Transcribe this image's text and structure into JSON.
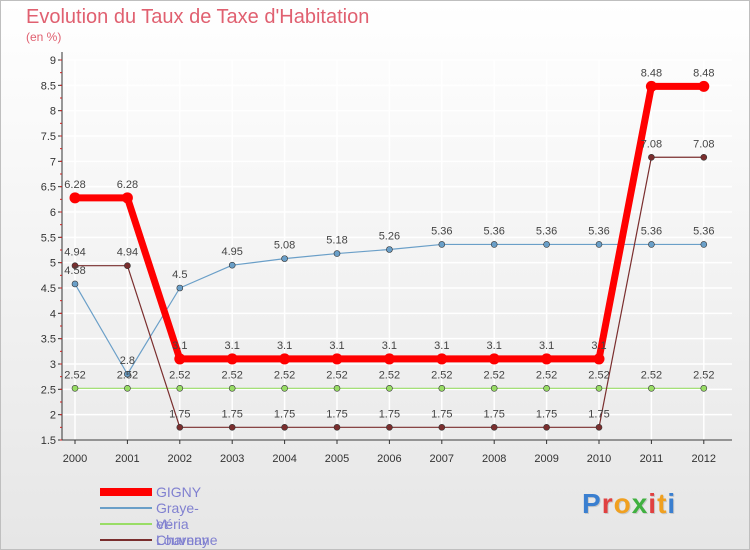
{
  "colors": {
    "title": "#e06070",
    "axis": "#333333",
    "tick_mark": "#cc2222",
    "grid": "#ffffff"
  },
  "chart_data": {
    "type": "line",
    "title": "Evolution du Taux de Taxe d'Habitation",
    "unit_label": "(en %)",
    "xlabel": "",
    "ylabel": "",
    "categories": [
      "2000",
      "2001",
      "2002",
      "2003",
      "2004",
      "2005",
      "2006",
      "2007",
      "2008",
      "2009",
      "2010",
      "2011",
      "2012"
    ],
    "ylim": [
      1.5,
      9
    ],
    "yticks": [
      1.5,
      2,
      2.5,
      3,
      3.5,
      4,
      4.5,
      5,
      5.5,
      6,
      6.5,
      7,
      7.5,
      8,
      8.5,
      9
    ],
    "grid": true,
    "legend_position": "bottom-left",
    "series": [
      {
        "name": "GIGNY",
        "color": "#ff0000",
        "emphasis": "thick",
        "values": [
          6.28,
          6.28,
          3.1,
          3.1,
          3.1,
          3.1,
          3.1,
          3.1,
          3.1,
          3.1,
          3.1,
          8.48,
          8.48
        ],
        "labels": [
          "6.28",
          "6.28",
          "3.1",
          "3.1",
          "3.1",
          "3.1",
          "3.1",
          "3.1",
          "3.1",
          "3.1",
          "3.1",
          "8.48",
          "8.48"
        ]
      },
      {
        "name": "Graye-et-Charnay",
        "color": "#6a9fc8",
        "values": [
          4.58,
          2.8,
          4.5,
          4.95,
          5.08,
          5.18,
          5.26,
          5.36,
          5.36,
          5.36,
          5.36,
          5.36,
          5.36
        ],
        "labels": [
          "4.58",
          "2.8",
          "4.5",
          "4.95",
          "5.08",
          "5.18",
          "5.26",
          "5.36",
          "5.36",
          "5.36",
          "5.36",
          "5.36",
          "5.36"
        ]
      },
      {
        "name": "Véria",
        "color": "#99dd66",
        "values": [
          2.52,
          2.52,
          2.52,
          2.52,
          2.52,
          2.52,
          2.52,
          2.52,
          2.52,
          2.52,
          2.52,
          2.52,
          2.52
        ],
        "labels": [
          "2.52",
          "2.52",
          "2.52",
          "2.52",
          "2.52",
          "2.52",
          "2.52",
          "2.52",
          "2.52",
          "2.52",
          "2.52",
          "2.52",
          "2.52"
        ]
      },
      {
        "name": "Louvenne",
        "color": "#7a2e2e",
        "values": [
          4.94,
          4.94,
          1.75,
          1.75,
          1.75,
          1.75,
          1.75,
          1.75,
          1.75,
          1.75,
          1.75,
          7.08,
          7.08
        ],
        "labels": [
          "4.94",
          "4.94",
          "1.75",
          "1.75",
          "1.75",
          "1.75",
          "1.75",
          "1.75",
          "1.75",
          "1.75",
          "1.75",
          "7.08",
          "7.08"
        ]
      }
    ]
  },
  "brand": {
    "name": "Proxiti",
    "letters": [
      "P",
      "r",
      "o",
      "x",
      "i",
      "t",
      "i"
    ],
    "letter_colors": [
      "#3a7fd0",
      "#e04040",
      "#f0a020",
      "#40b040",
      "#e04040",
      "#f0a020",
      "#3a7fd0"
    ]
  }
}
